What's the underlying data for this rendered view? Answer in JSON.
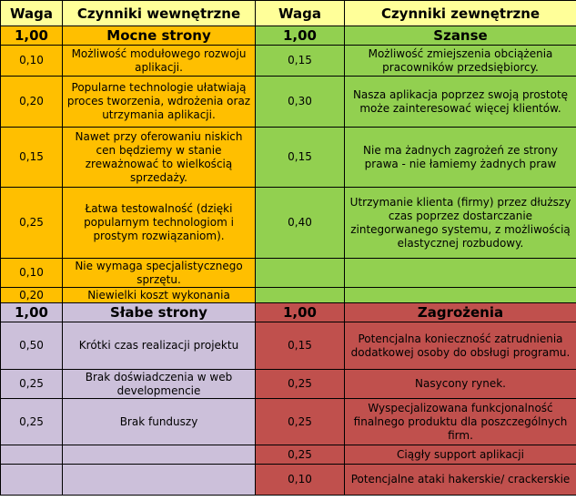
{
  "header": {
    "waga": "Waga",
    "internal": "Czynniki wewnętrzne",
    "waga2": "Waga",
    "external": "Czynniki zewnętrzne"
  },
  "sections": {
    "strengths": {
      "weight": "1,00",
      "title": "Mocne strony"
    },
    "opportunities": {
      "weight": "1,00",
      "title": "Szanse"
    },
    "weaknesses": {
      "weight": "1,00",
      "title": "Słabe strony"
    },
    "threats": {
      "weight": "1,00",
      "title": "Zagrożenia"
    }
  },
  "strengths": [
    {
      "weight": "0,10",
      "text": "Możliwość modułowego rozwoju aplikacji."
    },
    {
      "weight": "0,20",
      "text": "Popularne technologie ułatwiają proces tworzenia, wdrożenia oraz utrzymania aplikacji."
    },
    {
      "weight": "0,15",
      "text": "Nawet przy oferowaniu niskich cen będziemy w stanie zreważnować to wielkością sprzedaży."
    },
    {
      "weight": "0,25",
      "text": "Łatwa testowalność (dzięki popularnym technologiom i prostym rozwiązaniom)."
    },
    {
      "weight": "0,10",
      "text": "Nie wymaga specjalistycznego sprzętu."
    },
    {
      "weight": "0,20",
      "text": "Niewielki koszt wykonania"
    }
  ],
  "opportunities": [
    {
      "weight": "0,15",
      "text": "Możliwość zmiejszenia obciążenia pracowników przedsiębiorcy."
    },
    {
      "weight": "0,30",
      "text": "Nasza aplikacja poprzez swoją prostotę może zainteresować więcej klientów."
    },
    {
      "weight": "0,15",
      "text": "Nie ma żadnych zagrożeń ze strony prawa - nie łamiemy żadnych praw"
    },
    {
      "weight": "0,40",
      "text": "Utrzymanie klienta (firmy) przez dłuższy czas poprzez dostarczanie zintegorwanego systemu, z możliwością elastycznej rozbudowy."
    }
  ],
  "weaknesses": [
    {
      "weight": "0,50",
      "text": "Krótki czas realizacji projektu"
    },
    {
      "weight": "0,25",
      "text": "Brak doświadczenia w web developmencie"
    },
    {
      "weight": "0,25",
      "text": "Brak funduszy"
    }
  ],
  "threats": [
    {
      "weight": "0,15",
      "text": "Potencjalna konieczność zatrudnienia dodatkowej osoby do obsługi programu."
    },
    {
      "weight": "0,25",
      "text": "Nasycony rynek."
    },
    {
      "weight": "0,25",
      "text": "Wyspecjalizowana funkcjonalność finalnego produktu dla poszczególnych firm."
    },
    {
      "weight": "0,25",
      "text": "Ciągły support aplikacji"
    },
    {
      "weight": "0,10",
      "text": "Potencjalne ataki hakerskie/ crackerskie"
    }
  ]
}
